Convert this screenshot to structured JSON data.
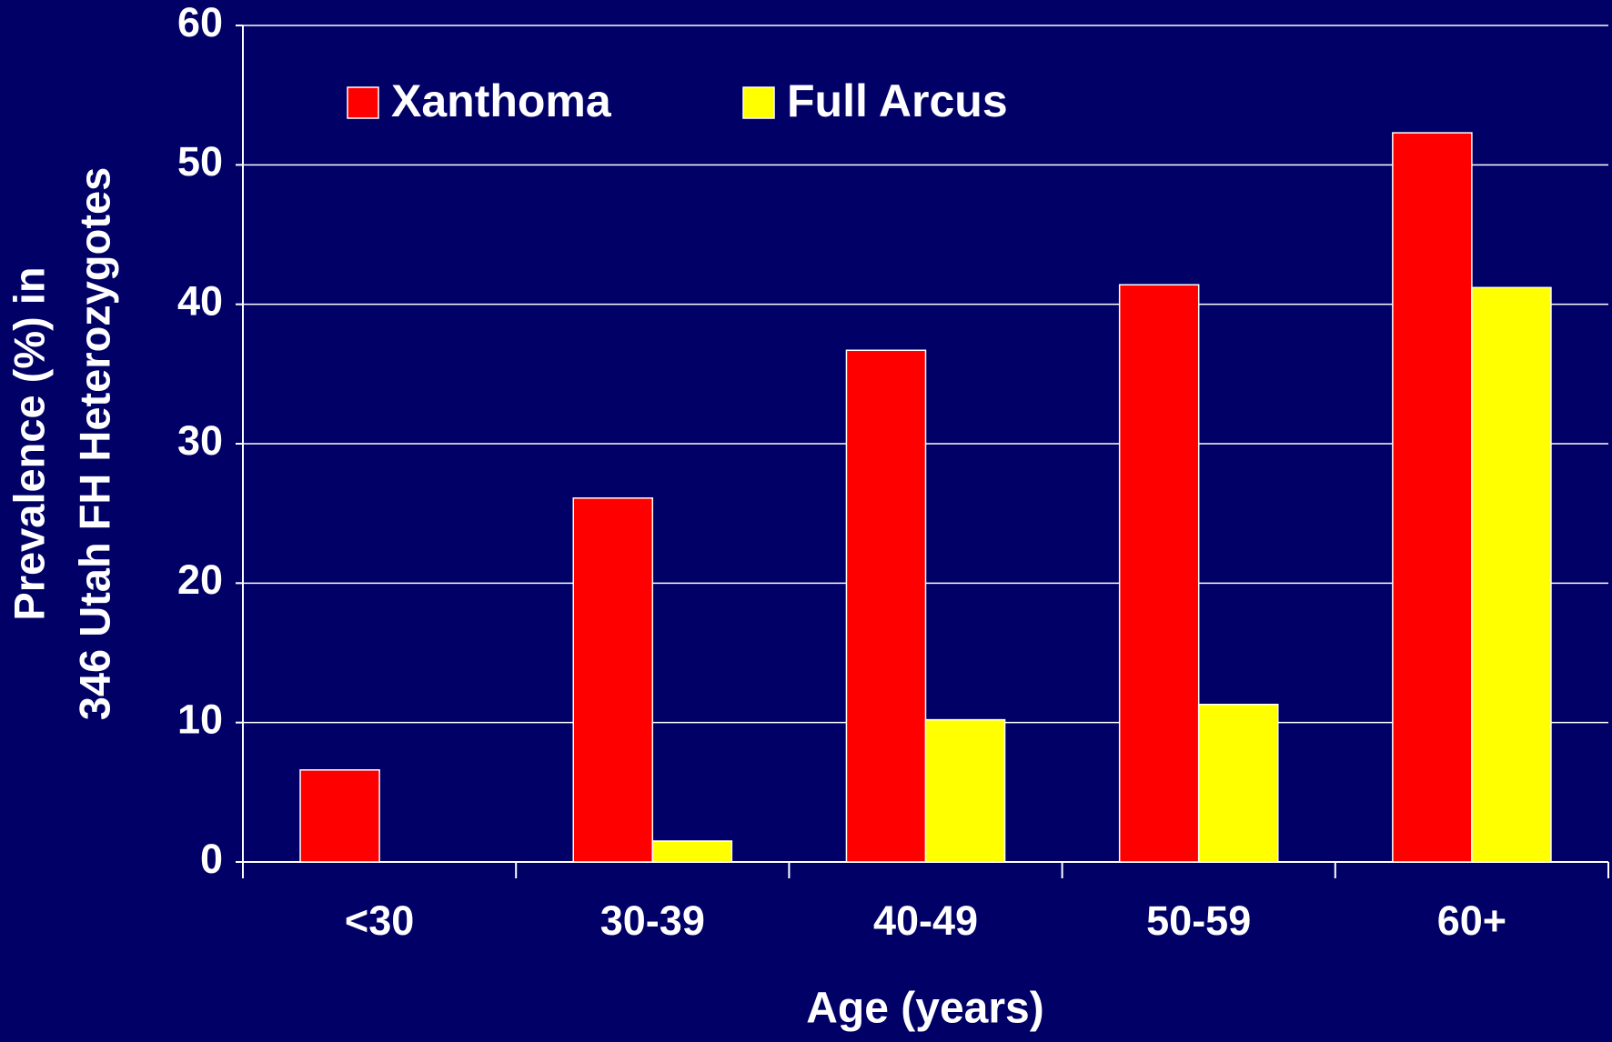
{
  "chart_data": {
    "type": "bar",
    "ylabel": [
      "Prevalence (%) in",
      "346 Utah FH Heterozygotes"
    ],
    "xlabel": "Age (years)",
    "categories": [
      "<30",
      "30-39",
      "40-49",
      "50-59",
      "60+"
    ],
    "series": [
      {
        "name": "Xanthoma",
        "color": "#ff0000",
        "values": [
          6.6,
          26.1,
          36.7,
          41.4,
          52.3
        ]
      },
      {
        "name": "Full Arcus",
        "color": "#ffff00",
        "values": [
          0,
          1.5,
          10.2,
          11.3,
          41.2
        ]
      }
    ],
    "ylim": [
      0,
      60
    ],
    "yticks": [
      0,
      10,
      20,
      30,
      40,
      50,
      60
    ],
    "grid": true,
    "legend": "top-left",
    "background": "#000066"
  }
}
